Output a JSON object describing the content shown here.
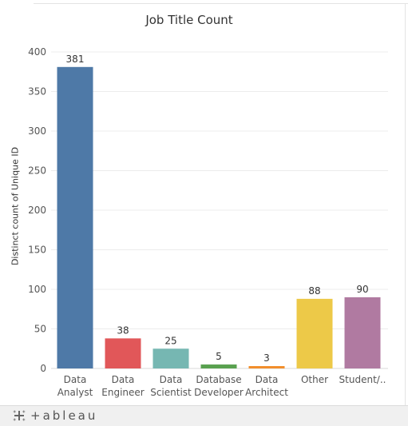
{
  "chart_data": {
    "type": "bar",
    "title": "Job Title Count",
    "xlabel": "",
    "ylabel": "Distinct count of Unique ID",
    "categories": [
      [
        "Data",
        "Analyst"
      ],
      [
        "Data",
        "Engineer"
      ],
      [
        "Data",
        "Scientist"
      ],
      [
        "Database",
        "Developer"
      ],
      [
        "Data",
        "Architect"
      ],
      [
        "Other"
      ],
      [
        "Student/.."
      ]
    ],
    "values": [
      381,
      38,
      25,
      5,
      3,
      88,
      90
    ],
    "colors": [
      "#4e79a7",
      "#e15759",
      "#76b7b2",
      "#59a14f",
      "#f28e2b",
      "#edc948",
      "#b07aa1"
    ],
    "ylim": [
      0,
      400
    ],
    "yticks": [
      0,
      50,
      100,
      150,
      200,
      250,
      300,
      350,
      400
    ],
    "grid": true
  },
  "footer": {
    "logo_text": "+ableau",
    "logo_icon": "tableau-logo-icon"
  }
}
